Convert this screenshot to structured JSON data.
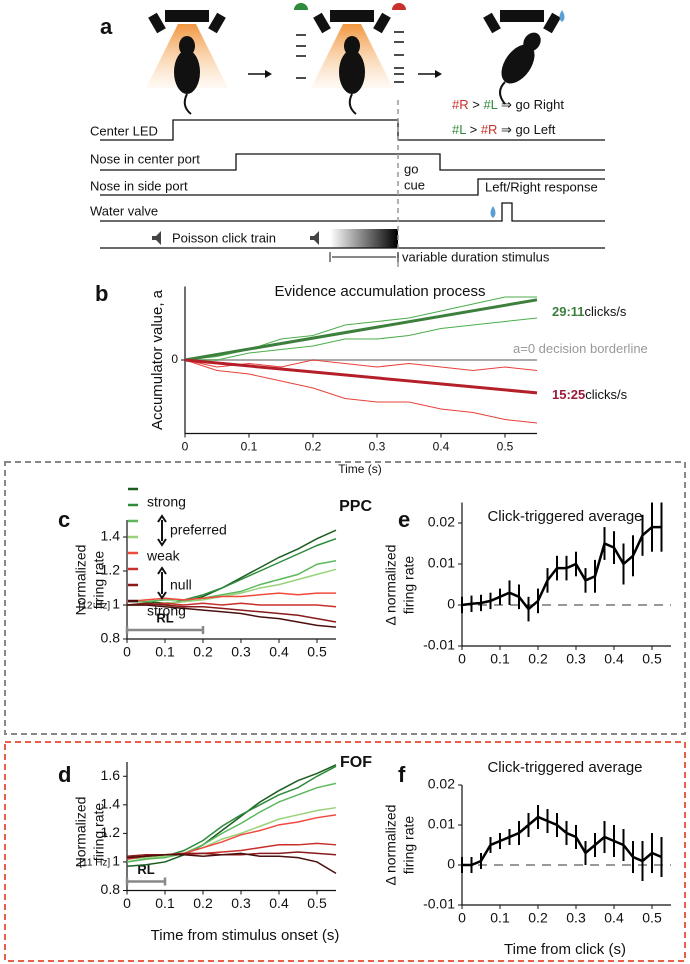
{
  "panel_a": {
    "label": "a",
    "rules": [
      [
        "#R",
        " > ",
        "#L",
        " ⇒ go Right"
      ],
      [
        "#L",
        " > ",
        "#R",
        " ⇒ go Left"
      ]
    ],
    "rows": [
      "Center LED",
      "Nose in center port",
      "Nose in side port",
      "Water valve"
    ],
    "click_train": "Poisson click train",
    "go_cue": [
      "go",
      "cue"
    ],
    "response": "Left/Right response",
    "stimulus": "variable duration stimulus"
  },
  "chart_data": [
    {
      "label": "b",
      "type": "line",
      "title": "Evidence accumulation process",
      "xlabel": "Time (s)",
      "ylabel": [
        "Accumulator value, a"
      ],
      "xlim": [
        0,
        0.55
      ],
      "xticks": [
        0,
        0.1,
        0.2,
        0.3,
        0.4,
        0.5
      ],
      "ylim": [
        -1.05,
        1.05
      ],
      "yticks": [
        0
      ],
      "series": [
        {
          "color": "#aaaaaa",
          "width": 2,
          "x": [
            0,
            0.55
          ],
          "values": [
            0,
            0
          ]
        },
        {
          "color": "#4cae4c",
          "width": 1,
          "x": [
            0,
            0.05,
            0.1,
            0.15,
            0.2,
            0.25,
            0.3,
            0.35,
            0.4,
            0.45,
            0.5,
            0.55
          ],
          "values": [
            0,
            0.05,
            0.15,
            0.3,
            0.35,
            0.5,
            0.55,
            0.6,
            0.7,
            0.8,
            0.9,
            0.9
          ]
        },
        {
          "color": "#4cae4c",
          "width": 1,
          "x": [
            0,
            0.05,
            0.1,
            0.15,
            0.2,
            0.25,
            0.3,
            0.35,
            0.4,
            0.45,
            0.5,
            0.55
          ],
          "values": [
            0,
            0,
            0.1,
            0.15,
            0.2,
            0.3,
            0.3,
            0.35,
            0.45,
            0.5,
            0.55,
            0.6
          ]
        },
        {
          "color": "#e8413a",
          "width": 1,
          "x": [
            0,
            0.05,
            0.1,
            0.15,
            0.2,
            0.25,
            0.3,
            0.35,
            0.4,
            0.45,
            0.5,
            0.55
          ],
          "values": [
            0,
            -0.1,
            -0.05,
            -0.1,
            0,
            -0.05,
            -0.1,
            -0.05,
            -0.1,
            -0.15,
            -0.1,
            -0.15
          ]
        },
        {
          "color": "#e8413a",
          "width": 1,
          "x": [
            0,
            0.05,
            0.1,
            0.15,
            0.2,
            0.25,
            0.3,
            0.35,
            0.4,
            0.45,
            0.5,
            0.55
          ],
          "values": [
            0,
            -0.15,
            -0.2,
            -0.3,
            -0.4,
            -0.55,
            -0.6,
            -0.6,
            -0.7,
            -0.75,
            -0.85,
            -0.9
          ]
        },
        {
          "color": "#3d7f3d",
          "width": 3,
          "x": [
            0,
            0.55
          ],
          "values": [
            0,
            0.86
          ]
        },
        {
          "color": "#b51f2a",
          "width": 3,
          "x": [
            0,
            0.55
          ],
          "values": [
            0,
            -0.47
          ]
        }
      ],
      "annotations": [
        {
          "rate": "29:11",
          "suffix": "clicks/s",
          "color": "#3d7f3d"
        },
        {
          "rate": "15:25",
          "suffix": "clicks/s",
          "color": "#9b1b3a"
        },
        {
          "text": "a=0 decision borderline",
          "color": "#999999"
        }
      ]
    },
    {
      "label": "c",
      "type": "line",
      "title": "PPC",
      "title_color": "#000000",
      "ylabel": [
        "Normalized",
        "firing rate"
      ],
      "unit_note": "[12 Hz]",
      "xlim": [
        0,
        0.55
      ],
      "xticks": [
        0,
        0.1,
        0.2,
        0.3,
        0.4,
        0.5
      ],
      "ylim": [
        0.8,
        1.5
      ],
      "yticks": [
        0.8,
        1,
        1.2,
        1.4
      ],
      "rl": {
        "label": "RL",
        "range": [
          0,
          0.2
        ]
      },
      "legend_labels": [
        "strong",
        "preferred",
        "weak",
        "null",
        "strong"
      ],
      "x": [
        0,
        0.05,
        0.1,
        0.15,
        0.2,
        0.25,
        0.3,
        0.35,
        0.4,
        0.45,
        0.5,
        0.55
      ],
      "series": [
        {
          "color": "#1b5e20",
          "values": [
            1.02,
            1.02,
            1.01,
            1.02,
            1.05,
            1.1,
            1.16,
            1.22,
            1.28,
            1.33,
            1.39,
            1.44
          ]
        },
        {
          "color": "#2e8b3a",
          "values": [
            1.0,
            1.01,
            1.0,
            1.03,
            1.06,
            1.1,
            1.15,
            1.2,
            1.25,
            1.3,
            1.35,
            1.39
          ]
        },
        {
          "color": "#5cb85c",
          "values": [
            1.02,
            1.02,
            1.03,
            1.03,
            1.04,
            1.06,
            1.08,
            1.12,
            1.15,
            1.18,
            1.24,
            1.26
          ]
        },
        {
          "color": "#9ad27a",
          "values": [
            1.0,
            1.0,
            1.01,
            1.02,
            1.03,
            1.05,
            1.07,
            1.1,
            1.12,
            1.15,
            1.18,
            1.21
          ]
        },
        {
          "color": "#f04a3f",
          "values": [
            1.02,
            1.03,
            1.04,
            1.03,
            1.04,
            1.05,
            1.05,
            1.06,
            1.07,
            1.06,
            1.07,
            1.07
          ]
        },
        {
          "color": "#c9302c",
          "values": [
            1.0,
            1.0,
            1.01,
            1.0,
            1.01,
            1.0,
            1.01,
            1.0,
            1.0,
            1.0,
            1.0,
            0.99
          ]
        },
        {
          "color": "#8b1a1a",
          "values": [
            1.0,
            1.01,
            1.0,
            0.99,
            0.99,
            0.98,
            0.97,
            0.96,
            0.95,
            0.94,
            0.92,
            0.9
          ]
        },
        {
          "color": "#4a0f0f",
          "values": [
            1.0,
            1.0,
            0.99,
            0.98,
            0.97,
            0.96,
            0.95,
            0.93,
            0.92,
            0.9,
            0.88,
            0.87
          ]
        }
      ]
    },
    {
      "label": "d",
      "type": "line",
      "title": "FOF",
      "title_color": "#e03a2f",
      "ylabel": [
        "Normalized",
        "firing rate"
      ],
      "unit_note": "[11 Hz]",
      "xlabel": "Time from stimulus onset (s)",
      "xlim": [
        0,
        0.55
      ],
      "xticks": [
        0,
        0.1,
        0.2,
        0.3,
        0.4,
        0.5
      ],
      "ylim": [
        0.8,
        1.7
      ],
      "yticks": [
        0.8,
        1,
        1.2,
        1.4,
        1.6
      ],
      "rl": {
        "label": "RL",
        "range": [
          0,
          0.1
        ]
      },
      "x": [
        0,
        0.05,
        0.1,
        0.15,
        0.2,
        0.25,
        0.3,
        0.35,
        0.4,
        0.45,
        0.5,
        0.55
      ],
      "series": [
        {
          "color": "#1b5e20",
          "values": [
            0.97,
            0.98,
            1.0,
            1.05,
            1.12,
            1.22,
            1.32,
            1.42,
            1.5,
            1.57,
            1.62,
            1.68
          ]
        },
        {
          "color": "#2e8b3a",
          "values": [
            1.0,
            1.02,
            1.04,
            1.08,
            1.15,
            1.25,
            1.33,
            1.4,
            1.47,
            1.52,
            1.6,
            1.67
          ]
        },
        {
          "color": "#5cb85c",
          "values": [
            1.0,
            1.02,
            1.03,
            1.06,
            1.12,
            1.2,
            1.27,
            1.35,
            1.42,
            1.47,
            1.52,
            1.55
          ]
        },
        {
          "color": "#9ad27a",
          "values": [
            1.02,
            1.03,
            1.04,
            1.06,
            1.1,
            1.16,
            1.2,
            1.25,
            1.3,
            1.33,
            1.36,
            1.38
          ]
        },
        {
          "color": "#f04a3f",
          "values": [
            1.03,
            1.04,
            1.05,
            1.06,
            1.1,
            1.14,
            1.19,
            1.22,
            1.26,
            1.28,
            1.31,
            1.33
          ]
        },
        {
          "color": "#c9302c",
          "values": [
            1.02,
            1.04,
            1.05,
            1.05,
            1.06,
            1.07,
            1.08,
            1.1,
            1.12,
            1.12,
            1.13,
            1.12
          ]
        },
        {
          "color": "#8b1a1a",
          "values": [
            1.04,
            1.05,
            1.05,
            1.06,
            1.06,
            1.05,
            1.05,
            1.06,
            1.06,
            1.07,
            1.06,
            1.05
          ]
        },
        {
          "color": "#4a0f0f",
          "values": [
            1.03,
            1.04,
            1.05,
            1.05,
            1.04,
            1.05,
            1.06,
            1.04,
            1.04,
            1.03,
            1.0,
            0.92
          ]
        }
      ]
    },
    {
      "label": "e",
      "type": "errorbar",
      "title": "Click-triggered average",
      "ylabel": [
        "Δ normalized",
        "firing rate"
      ],
      "color": "#000000",
      "xlim": [
        0,
        0.55
      ],
      "xticks": [
        0,
        0.1,
        0.2,
        0.3,
        0.4,
        0.5
      ],
      "ylim": [
        -0.01,
        0.025
      ],
      "yticks": [
        -0.01,
        0,
        0.01,
        0.02
      ],
      "reference_line": 0,
      "x": [
        0,
        0.025,
        0.05,
        0.075,
        0.1,
        0.125,
        0.15,
        0.175,
        0.2,
        0.225,
        0.25,
        0.275,
        0.3,
        0.325,
        0.35,
        0.375,
        0.4,
        0.425,
        0.45,
        0.475,
        0.5,
        0.525
      ],
      "values": [
        0,
        0.0003,
        0.0005,
        0.001,
        0.002,
        0.003,
        0.002,
        -0.001,
        0.001,
        0.006,
        0.009,
        0.009,
        0.01,
        0.006,
        0.007,
        0.015,
        0.014,
        0.01,
        0.012,
        0.017,
        0.019,
        0.019
      ],
      "errors": [
        0.002,
        0.002,
        0.002,
        0.002,
        0.002,
        0.003,
        0.003,
        0.003,
        0.003,
        0.003,
        0.003,
        0.003,
        0.003,
        0.003,
        0.004,
        0.004,
        0.004,
        0.005,
        0.005,
        0.005,
        0.006,
        0.006
      ]
    },
    {
      "label": "f",
      "type": "errorbar",
      "title": "Click-triggered average",
      "ylabel": [
        "Δ normalized",
        "firing rate"
      ],
      "xlabel": "Time from click (s)",
      "color": "#000000",
      "xlim": [
        0,
        0.55
      ],
      "xticks": [
        0,
        0.1,
        0.2,
        0.3,
        0.4,
        0.5
      ],
      "ylim": [
        -0.01,
        0.02
      ],
      "yticks": [
        -0.01,
        0,
        0.01,
        0.02
      ],
      "reference_line": 0,
      "x": [
        0,
        0.025,
        0.05,
        0.075,
        0.1,
        0.125,
        0.15,
        0.175,
        0.2,
        0.225,
        0.25,
        0.275,
        0.3,
        0.325,
        0.35,
        0.375,
        0.4,
        0.425,
        0.45,
        0.475,
        0.5,
        0.525
      ],
      "values": [
        0,
        0,
        0.001,
        0.005,
        0.006,
        0.007,
        0.008,
        0.01,
        0.012,
        0.011,
        0.01,
        0.008,
        0.007,
        0.003,
        0.005,
        0.007,
        0.006,
        0.005,
        0.002,
        0.001,
        0.003,
        0.002
      ],
      "errors": [
        0.002,
        0.002,
        0.002,
        0.002,
        0.002,
        0.002,
        0.003,
        0.003,
        0.003,
        0.003,
        0.003,
        0.003,
        0.003,
        0.003,
        0.003,
        0.004,
        0.004,
        0.004,
        0.004,
        0.005,
        0.005,
        0.005
      ]
    }
  ]
}
